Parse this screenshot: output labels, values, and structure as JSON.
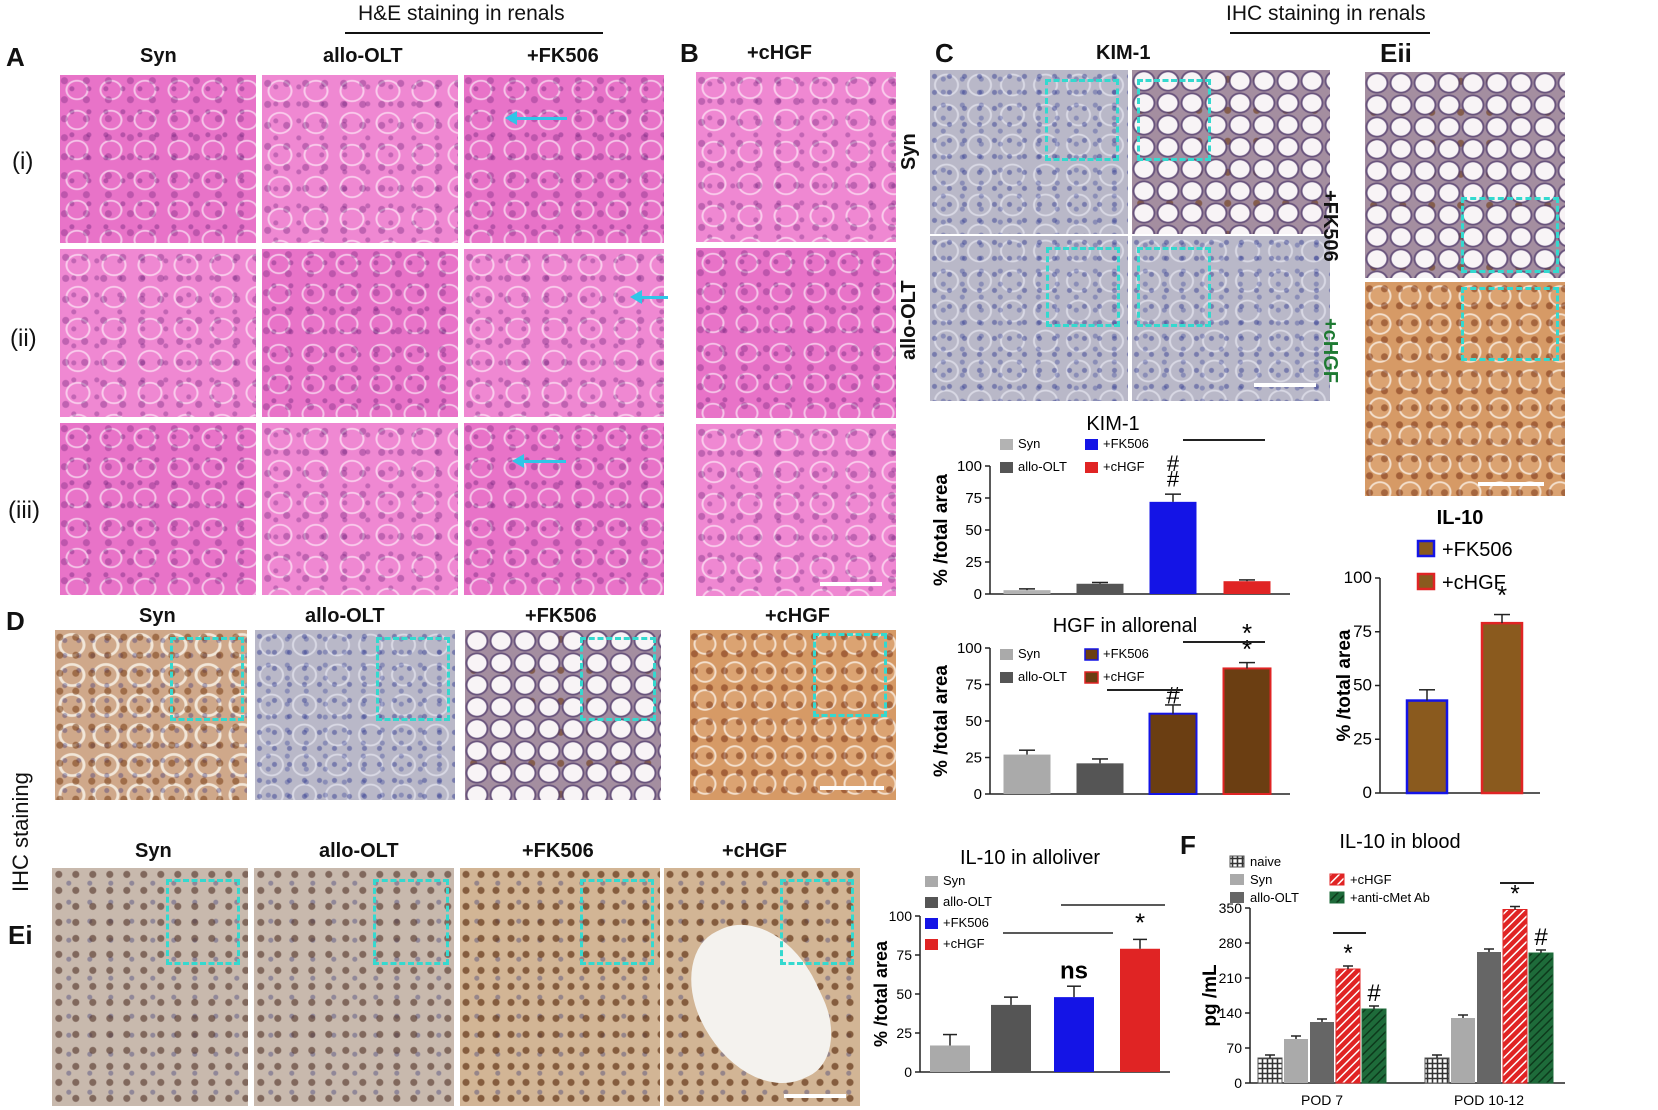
{
  "headers": {
    "he": "H&E staining in renals",
    "ihc_top": "IHC staining in renals",
    "ihc_side": "IHC staining"
  },
  "panel_letters": {
    "A": "A",
    "B": "B",
    "C": "C",
    "D": "D",
    "Eii": "Eii",
    "Ei": "Ei",
    "F": "F"
  },
  "panelA": {
    "columns": [
      "Syn",
      "allo-OLT",
      "+FK506"
    ],
    "rows": [
      "(i)",
      "(ii)",
      "(iii)"
    ]
  },
  "panelB": {
    "column": "+cHGF"
  },
  "panelC": {
    "title": "KIM-1",
    "rows": [
      "Syn",
      "allo-OLT"
    ]
  },
  "panelEii": {
    "labels": [
      "+FK506",
      "+cHGF"
    ]
  },
  "panelD": {
    "columns": [
      "Syn",
      "allo-OLT",
      "+FK506",
      "+cHGF"
    ]
  },
  "panelEi": {
    "columns": [
      "Syn",
      "allo-OLT",
      "+FK506",
      "+cHGF"
    ]
  },
  "colors": {
    "syn": "#b3b3b3",
    "allo": "#555555",
    "fk506": "#1414e6",
    "chgf": "#e02424",
    "brown": "#6b3e12",
    "olive": "#8a5a1e",
    "green": "#1e6b3a",
    "crosshatch": "#333333"
  },
  "chart_data": [
    {
      "id": "kim1",
      "type": "bar",
      "title": "KIM-1",
      "ylabel": "% /total area",
      "ylim": [
        0,
        100
      ],
      "yticks": [
        "0",
        "25",
        "50",
        "75",
        "100"
      ],
      "categories": [
        "Syn",
        "allo-OLT",
        "+FK506",
        "+cHGF"
      ],
      "legend": [
        "Syn",
        "allo-OLT",
        "+FK506",
        "+cHGF"
      ],
      "values": [
        3,
        8,
        72,
        10
      ],
      "errors": [
        1,
        1,
        6,
        1
      ],
      "annotations": [
        {
          "bar": 2,
          "text": "#"
        },
        {
          "bar": 2,
          "text": "#"
        }
      ]
    },
    {
      "id": "hgf",
      "type": "bar",
      "title": "HGF in allorenal",
      "ylabel": "% /total area",
      "ylim": [
        0,
        100
      ],
      "yticks": [
        "0",
        "25",
        "50",
        "75",
        "100"
      ],
      "categories": [
        "Syn",
        "allo-OLT",
        "+FK506",
        "+cHGF"
      ],
      "legend": [
        "Syn",
        "allo-OLT",
        "+FK506",
        "+cHGF"
      ],
      "values": [
        27,
        21,
        55,
        86
      ],
      "errors": [
        3,
        3,
        6,
        4
      ],
      "annotations": [
        {
          "bar": 2,
          "text": "#"
        },
        {
          "bar": 3,
          "text": "*"
        },
        {
          "bar": 3,
          "text": "*"
        }
      ]
    },
    {
      "id": "il10renal",
      "type": "bar",
      "title": "IL-10",
      "ylabel": "% /total area",
      "ylim": [
        0,
        100
      ],
      "yticks": [
        "0",
        "25",
        "50",
        "75",
        "100"
      ],
      "categories": [
        "+FK506",
        "+cHGF"
      ],
      "legend": [
        "+FK506",
        "+cHGF"
      ],
      "values": [
        43,
        79
      ],
      "errors": [
        5,
        4
      ],
      "annotations": [
        {
          "bar": 1,
          "text": "*"
        }
      ]
    },
    {
      "id": "il10liver",
      "type": "bar",
      "title": "IL-10 in alloliver",
      "ylabel": "% /total area",
      "ylim": [
        0,
        100
      ],
      "yticks": [
        "0",
        "25",
        "50",
        "75",
        "100"
      ],
      "categories": [
        "Syn",
        "allo-OLT",
        "+FK506",
        "+cHGF"
      ],
      "legend": [
        "Syn",
        "allo-OLT",
        "+FK506",
        "+cHGF"
      ],
      "values": [
        17,
        43,
        48,
        79
      ],
      "errors": [
        7,
        5,
        7,
        6
      ],
      "annotations": [
        {
          "bar": 2,
          "text": "ns"
        },
        {
          "bar": 3,
          "text": "*"
        }
      ]
    },
    {
      "id": "il10blood",
      "type": "bar",
      "title": "IL-10 in blood",
      "ylabel": "pg /mL",
      "ylim": [
        0,
        350
      ],
      "yticks": [
        "0",
        "70",
        "140",
        "210",
        "280",
        "350"
      ],
      "categories": [
        "POD 7",
        "POD 10-12"
      ],
      "legend": [
        "naive",
        "Syn",
        "allo-OLT",
        "+cHGF",
        "+anti-cMet Ab"
      ],
      "series": [
        {
          "name": "naive",
          "values": [
            50,
            50
          ]
        },
        {
          "name": "Syn",
          "values": [
            88,
            130
          ]
        },
        {
          "name": "allo-OLT",
          "values": [
            122,
            262
          ]
        },
        {
          "name": "+cHGF",
          "values": [
            228,
            347
          ]
        },
        {
          "name": "+anti-cMet Ab",
          "values": [
            148,
            260
          ]
        }
      ],
      "annotations": [
        {
          "group": 0,
          "series": 3,
          "text": "*"
        },
        {
          "group": 0,
          "series": 4,
          "text": "#"
        },
        {
          "group": 1,
          "series": 3,
          "text": "*"
        },
        {
          "group": 1,
          "series": 4,
          "text": "#"
        }
      ]
    }
  ]
}
